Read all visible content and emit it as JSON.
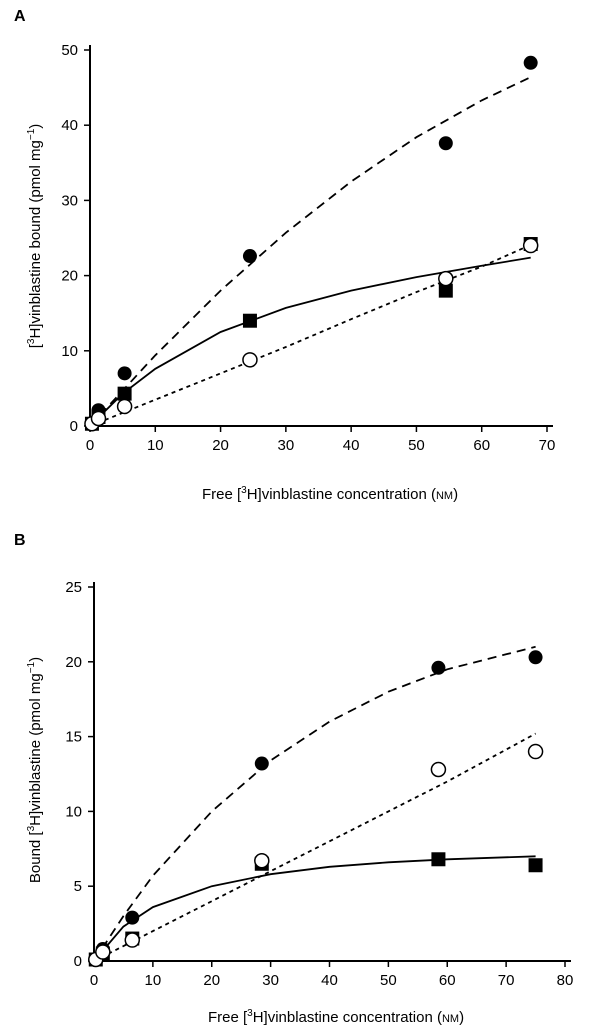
{
  "chart_data": [
    {
      "panel": "A",
      "type": "scatter",
      "xlabel": "Free [³H]vinblastine concentration (nM)",
      "ylabel": "[³H]vinblastine bound (pmol mg⁻¹)",
      "xlim": [
        0,
        70
      ],
      "ylim": [
        0,
        50
      ],
      "xticks": [
        "0",
        "10",
        "20",
        "30",
        "40",
        "50",
        "60",
        "70"
      ],
      "yticks": [
        "0",
        "10",
        "20",
        "30",
        "40",
        "50"
      ],
      "grid": false,
      "series": [
        {
          "marker": "filled-circle",
          "line": "long-dashed",
          "points": [
            [
              0.3,
              0.3
            ],
            [
              1.3,
              2.1
            ],
            [
              5.3,
              7.0
            ],
            [
              24.5,
              22.6
            ],
            [
              54.5,
              37.6
            ],
            [
              67.5,
              48.3
            ]
          ],
          "fit": [
            [
              0,
              0
            ],
            [
              10,
              9.4
            ],
            [
              20,
              18.0
            ],
            [
              30,
              25.7
            ],
            [
              40,
              32.5
            ],
            [
              50,
              38.4
            ],
            [
              60,
              43.3
            ],
            [
              67.5,
              46.4
            ]
          ]
        },
        {
          "marker": "filled-square",
          "line": "solid",
          "points": [
            [
              0.3,
              0.3
            ],
            [
              1.3,
              1.2
            ],
            [
              5.3,
              4.3
            ],
            [
              24.5,
              14.0
            ],
            [
              54.5,
              18.0
            ],
            [
              67.5,
              24.2
            ]
          ],
          "fit": [
            [
              0,
              0
            ],
            [
              5,
              4.3
            ],
            [
              10,
              7.6
            ],
            [
              20,
              12.5
            ],
            [
              30,
              15.7
            ],
            [
              40,
              18.0
            ],
            [
              50,
              19.8
            ],
            [
              60,
              21.3
            ],
            [
              67.5,
              22.4
            ]
          ]
        },
        {
          "marker": "open-circle",
          "line": "short-dashed",
          "points": [
            [
              0.3,
              0.3
            ],
            [
              1.3,
              1.0
            ],
            [
              5.3,
              2.6
            ],
            [
              24.5,
              8.8
            ],
            [
              54.5,
              19.6
            ],
            [
              67.5,
              24.0
            ]
          ],
          "fit": [
            [
              0,
              0
            ],
            [
              10,
              3.5
            ],
            [
              20,
              7.0
            ],
            [
              30,
              10.5
            ],
            [
              40,
              14.2
            ],
            [
              50,
              17.8
            ],
            [
              60,
              21.2
            ],
            [
              67.5,
              24.1
            ]
          ]
        }
      ]
    },
    {
      "panel": "B",
      "type": "scatter",
      "xlabel": "Free [³H]vinblastine concentration (nM)",
      "ylabel": "Bound [³H]vinblastine (pmol mg⁻¹)",
      "xlim": [
        0,
        80
      ],
      "ylim": [
        0,
        25
      ],
      "xticks": [
        "0",
        "10",
        "20",
        "30",
        "40",
        "50",
        "60",
        "70",
        "80"
      ],
      "yticks": [
        "0",
        "5",
        "10",
        "15",
        "20",
        "25"
      ],
      "grid": false,
      "series": [
        {
          "marker": "filled-circle",
          "line": "long-dashed",
          "points": [
            [
              0.3,
              0.1
            ],
            [
              1.5,
              0.8
            ],
            [
              6.5,
              2.9
            ],
            [
              28.5,
              13.2
            ],
            [
              58.5,
              19.6
            ],
            [
              75,
              20.3
            ]
          ],
          "fit": [
            [
              0,
              0
            ],
            [
              5,
              3.0
            ],
            [
              10,
              5.7
            ],
            [
              20,
              10.0
            ],
            [
              30,
              13.4
            ],
            [
              40,
              16.0
            ],
            [
              50,
              18.0
            ],
            [
              60,
              19.5
            ],
            [
              70,
              20.5
            ],
            [
              75,
              21.0
            ]
          ]
        },
        {
          "marker": "filled-square",
          "line": "solid",
          "points": [
            [
              0.3,
              0.1
            ],
            [
              1.5,
              0.5
            ],
            [
              6.5,
              1.5
            ],
            [
              28.5,
              6.5
            ],
            [
              58.5,
              6.8
            ],
            [
              75,
              6.4
            ]
          ],
          "fit": [
            [
              0,
              0
            ],
            [
              5,
              2.3
            ],
            [
              10,
              3.6
            ],
            [
              20,
              5.0
            ],
            [
              30,
              5.8
            ],
            [
              40,
              6.3
            ],
            [
              50,
              6.6
            ],
            [
              60,
              6.8
            ],
            [
              75,
              7.0
            ]
          ]
        },
        {
          "marker": "open-circle",
          "line": "short-dashed",
          "points": [
            [
              0.3,
              0.1
            ],
            [
              1.5,
              0.6
            ],
            [
              6.5,
              1.4
            ],
            [
              28.5,
              6.7
            ],
            [
              58.5,
              12.8
            ],
            [
              75,
              14.0
            ]
          ],
          "fit": [
            [
              0,
              0
            ],
            [
              10,
              2.0
            ],
            [
              20,
              4.0
            ],
            [
              30,
              6.0
            ],
            [
              40,
              8.0
            ],
            [
              50,
              10.0
            ],
            [
              60,
              12.0
            ],
            [
              75,
              15.2
            ]
          ]
        }
      ]
    }
  ]
}
